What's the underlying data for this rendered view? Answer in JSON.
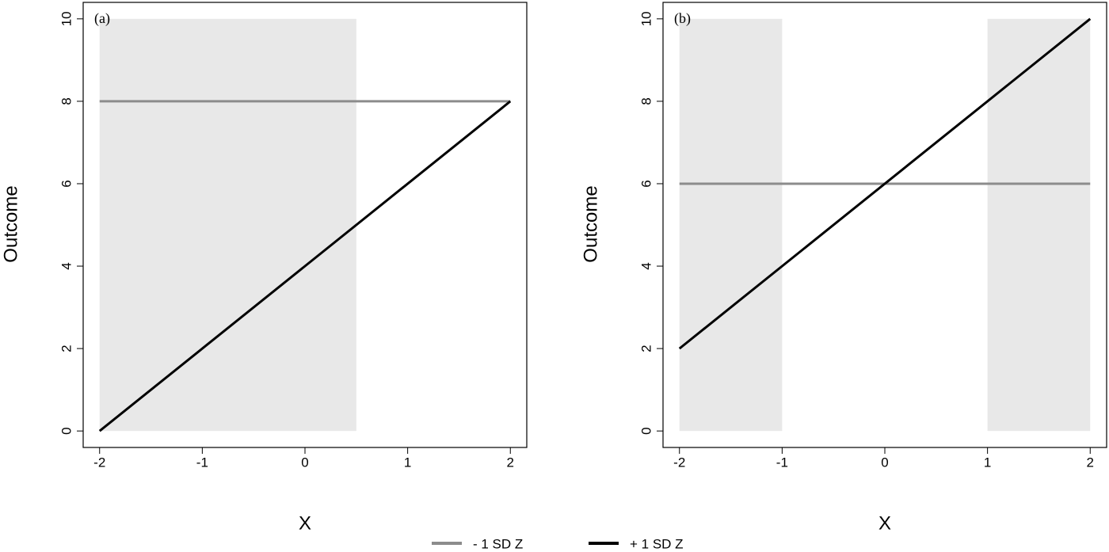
{
  "chart_data": [
    {
      "type": "line",
      "title": "(a)",
      "x_label": "X",
      "y_label": "Outcome",
      "x": [
        -2,
        2
      ],
      "series": [
        {
          "name": "- 1 SD Z",
          "color": "#8c8c8c",
          "values": [
            8,
            8
          ]
        },
        {
          "name": "+ 1 SD Z",
          "color": "#000000",
          "values": [
            0,
            8
          ]
        }
      ],
      "shaded_regions": [
        {
          "x": [
            -2,
            0.5
          ],
          "y": [
            0,
            10
          ]
        }
      ],
      "shade_color": "#e8e8e8",
      "xlim": [
        -2.16,
        2.16
      ],
      "ylim": [
        -0.4,
        10.4
      ],
      "xticks": [
        -2,
        -1,
        0,
        1,
        2
      ],
      "yticks": [
        0,
        2,
        4,
        6,
        8,
        10
      ],
      "grid": false
    },
    {
      "type": "line",
      "title": "(b)",
      "x_label": "X",
      "y_label": "Outcome",
      "x": [
        -2,
        2
      ],
      "series": [
        {
          "name": "- 1 SD Z",
          "color": "#8c8c8c",
          "values": [
            6,
            6
          ]
        },
        {
          "name": "+ 1 SD Z",
          "color": "#000000",
          "values": [
            2,
            10
          ]
        }
      ],
      "shaded_regions": [
        {
          "x": [
            -2,
            -1
          ],
          "y": [
            0,
            10
          ]
        },
        {
          "x": [
            1,
            2
          ],
          "y": [
            0,
            10
          ]
        }
      ],
      "shade_color": "#e8e8e8",
      "xlim": [
        -2.16,
        2.16
      ],
      "ylim": [
        -0.4,
        10.4
      ],
      "xticks": [
        -2,
        -1,
        0,
        1,
        2
      ],
      "yticks": [
        0,
        2,
        4,
        6,
        8,
        10
      ],
      "grid": false
    }
  ]
}
